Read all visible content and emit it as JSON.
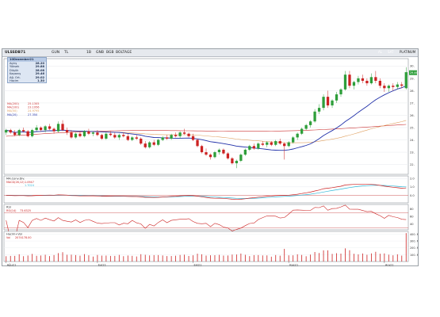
{
  "toolbar": {
    "ticker": "ULSSDB71",
    "fields": [
      "GUN",
      "TL",
      "1B",
      "GNB",
      "BGB",
      "BOLTAGE"
    ],
    "right_buttons": [
      "AL",
      "SAT",
      "PLATINUM"
    ],
    "button_colors": [
      "#2e8b3a",
      "#c0392b",
      "#444444"
    ]
  },
  "infobox": {
    "title": "10Dezember21",
    "rows": [
      {
        "label": "Açılış",
        "value": "28.20"
      },
      {
        "label": "Yüksek",
        "value": "29.88"
      },
      {
        "label": "Düşük",
        "value": "28.08"
      },
      {
        "label": "Kapanış",
        "value": "29.46"
      },
      {
        "label": "Ağ. Ort.",
        "value": "29.02"
      },
      {
        "label": "Hacim",
        "value": "1.30"
      }
    ]
  },
  "ma_legend": [
    {
      "label": "MA(200)",
      "value": "25.1305",
      "color": "#cc3333"
    },
    {
      "label": "MA(100)",
      "value": "23.1956",
      "color": "#cc3333"
    },
    {
      "label": "MA(50)",
      "value": "24.9795",
      "color": "#e0a060"
    },
    {
      "label": "MA(20)",
      "value": "27.350",
      "color": "#1f2fa8"
    }
  ],
  "chart_data": [
    {
      "type": "candlestick",
      "title": "",
      "x_labels": [
        "Ağu21",
        "Eyl21",
        "Eki21",
        "Kas21",
        "Ara21"
      ],
      "x_label_index": [
        0,
        21,
        43,
        65,
        87
      ],
      "y_ticks": [
        22,
        23,
        24,
        25,
        26,
        27,
        28,
        29,
        30
      ],
      "ylim": [
        21.2,
        30.6
      ],
      "last_price_label": "29.46",
      "colors": {
        "up": "#2e9e3a",
        "down": "#cc2222",
        "ma20": "#1f2fa8",
        "ma200": "#cc3333",
        "ma50": "#e0a060"
      },
      "ohlc": [
        [
          24.6,
          24.9,
          24.4,
          24.8
        ],
        [
          24.8,
          24.9,
          24.5,
          24.6
        ],
        [
          24.6,
          24.8,
          24.3,
          24.4
        ],
        [
          24.4,
          24.9,
          24.3,
          24.8
        ],
        [
          24.8,
          25.0,
          24.6,
          24.7
        ],
        [
          24.7,
          24.8,
          24.2,
          24.3
        ],
        [
          24.3,
          24.9,
          24.2,
          24.8
        ],
        [
          24.8,
          25.2,
          24.7,
          25.0
        ],
        [
          25.0,
          25.1,
          24.7,
          24.8
        ],
        [
          24.8,
          25.2,
          24.6,
          25.1
        ],
        [
          25.1,
          25.3,
          24.8,
          24.9
        ],
        [
          24.9,
          25.0,
          24.5,
          24.7
        ],
        [
          24.7,
          25.5,
          24.6,
          25.3
        ],
        [
          25.3,
          25.6,
          24.7,
          24.8
        ],
        [
          24.8,
          25.0,
          24.4,
          24.6
        ],
        [
          24.6,
          24.8,
          24.1,
          24.2
        ],
        [
          24.2,
          24.6,
          24.1,
          24.5
        ],
        [
          24.5,
          24.7,
          24.2,
          24.3
        ],
        [
          24.3,
          24.8,
          24.2,
          24.7
        ],
        [
          24.7,
          24.9,
          24.4,
          24.5
        ],
        [
          24.5,
          24.7,
          24.3,
          24.6
        ],
        [
          24.6,
          24.8,
          24.3,
          24.4
        ],
        [
          24.4,
          24.5,
          24.0,
          24.1
        ],
        [
          24.1,
          24.6,
          24.0,
          24.5
        ],
        [
          24.5,
          24.7,
          24.3,
          24.4
        ],
        [
          24.4,
          24.6,
          24.1,
          24.2
        ],
        [
          24.2,
          24.5,
          24.0,
          24.4
        ],
        [
          24.4,
          24.6,
          24.2,
          24.3
        ],
        [
          24.3,
          24.5,
          23.9,
          24.0
        ],
        [
          24.0,
          24.3,
          23.9,
          24.2
        ],
        [
          24.2,
          24.4,
          24.0,
          24.1
        ],
        [
          24.1,
          24.2,
          23.6,
          23.7
        ],
        [
          23.7,
          23.9,
          23.3,
          23.4
        ],
        [
          23.4,
          23.9,
          23.3,
          23.8
        ],
        [
          23.8,
          24.0,
          23.5,
          23.6
        ],
        [
          23.6,
          24.1,
          23.5,
          24.0
        ],
        [
          24.0,
          24.3,
          23.9,
          24.2
        ],
        [
          24.2,
          24.4,
          24.0,
          24.1
        ],
        [
          24.1,
          24.5,
          24.0,
          24.4
        ],
        [
          24.4,
          24.6,
          24.2,
          24.3
        ],
        [
          24.3,
          24.7,
          24.1,
          24.6
        ],
        [
          24.6,
          24.9,
          24.4,
          24.5
        ],
        [
          24.5,
          24.6,
          24.2,
          24.3
        ],
        [
          24.3,
          24.5,
          23.9,
          24.0
        ],
        [
          24.0,
          24.1,
          23.4,
          23.5
        ],
        [
          23.5,
          23.6,
          22.9,
          23.0
        ],
        [
          23.0,
          23.3,
          22.7,
          22.8
        ],
        [
          22.8,
          22.9,
          22.4,
          22.6
        ],
        [
          22.6,
          23.1,
          22.5,
          23.0
        ],
        [
          23.0,
          23.3,
          22.8,
          23.2
        ],
        [
          23.2,
          23.3,
          22.8,
          22.9
        ],
        [
          22.9,
          23.0,
          22.4,
          22.5
        ],
        [
          22.5,
          22.6,
          22.0,
          22.1
        ],
        [
          22.1,
          22.4,
          21.7,
          22.3
        ],
        [
          22.3,
          22.9,
          22.2,
          22.8
        ],
        [
          22.8,
          23.3,
          22.7,
          23.2
        ],
        [
          23.2,
          23.6,
          23.1,
          23.5
        ],
        [
          23.5,
          23.7,
          23.2,
          23.3
        ],
        [
          23.3,
          23.8,
          23.2,
          23.7
        ],
        [
          23.7,
          23.9,
          23.5,
          23.6
        ],
        [
          23.6,
          23.9,
          23.4,
          23.8
        ],
        [
          23.8,
          23.9,
          23.5,
          23.6
        ],
        [
          23.6,
          24.0,
          23.5,
          23.9
        ],
        [
          23.9,
          24.1,
          23.6,
          23.7
        ],
        [
          23.7,
          23.8,
          22.4,
          23.5
        ],
        [
          23.5,
          23.9,
          23.4,
          23.8
        ],
        [
          23.8,
          24.3,
          23.7,
          24.2
        ],
        [
          24.2,
          24.6,
          24.0,
          24.5
        ],
        [
          24.5,
          25.0,
          24.4,
          24.9
        ],
        [
          24.9,
          25.3,
          24.8,
          25.2
        ],
        [
          25.2,
          25.6,
          25.0,
          25.5
        ],
        [
          25.5,
          26.5,
          25.4,
          26.3
        ],
        [
          26.3,
          26.9,
          26.1,
          26.6
        ],
        [
          26.6,
          27.7,
          26.4,
          27.5
        ],
        [
          27.5,
          28.0,
          26.6,
          26.8
        ],
        [
          26.8,
          27.3,
          26.6,
          27.2
        ],
        [
          27.2,
          27.9,
          27.0,
          27.7
        ],
        [
          27.7,
          28.2,
          27.5,
          28.1
        ],
        [
          28.1,
          29.6,
          28.0,
          29.3
        ],
        [
          29.3,
          29.6,
          28.2,
          28.4
        ],
        [
          28.4,
          28.8,
          28.1,
          28.7
        ],
        [
          28.7,
          29.2,
          28.5,
          29.0
        ],
        [
          29.0,
          29.3,
          28.6,
          28.8
        ],
        [
          28.8,
          29.0,
          28.4,
          28.6
        ],
        [
          28.6,
          29.4,
          28.5,
          29.1
        ],
        [
          29.1,
          29.6,
          28.6,
          28.8
        ],
        [
          28.8,
          29.0,
          28.2,
          28.4
        ],
        [
          28.4,
          28.6,
          27.9,
          28.2
        ],
        [
          28.2,
          28.5,
          27.9,
          28.4
        ],
        [
          28.4,
          28.6,
          28.0,
          28.3
        ],
        [
          28.3,
          28.7,
          28.1,
          28.5
        ],
        [
          28.5,
          28.7,
          28.2,
          28.4
        ],
        [
          28.2,
          29.9,
          28.1,
          29.5
        ]
      ]
    },
    {
      "type": "line",
      "title": "MA.Conv.Div.",
      "legend": "MACD(26,12)",
      "legend_value": "1.0947",
      "legend2": "",
      "legend2_value": "1.7024",
      "y_ticks": [
        "2.0",
        "1.0",
        "0.0"
      ],
      "ylim": [
        -0.9,
        2.3
      ],
      "colors": {
        "macd": "#cc2222",
        "signal": "#30b8d8"
      }
    },
    {
      "type": "line",
      "title": "RSI",
      "legend": "RSI(14)",
      "legend_value": "73.6325",
      "y_ticks": [
        "80",
        "60",
        "40"
      ],
      "ylim": [
        25,
        92
      ],
      "levels": [
        30,
        70
      ],
      "colors": {
        "rsi": "#cc2222"
      }
    },
    {
      "type": "bar",
      "title": "Hacim+Vol",
      "legend": "Vol",
      "legend_value": "2074178.00",
      "y_ticks": [
        "400. M",
        "300. M",
        "200. M",
        "100. M"
      ],
      "ylim": [
        0,
        440
      ],
      "colors": {
        "bar": "#cc2222"
      }
    }
  ]
}
